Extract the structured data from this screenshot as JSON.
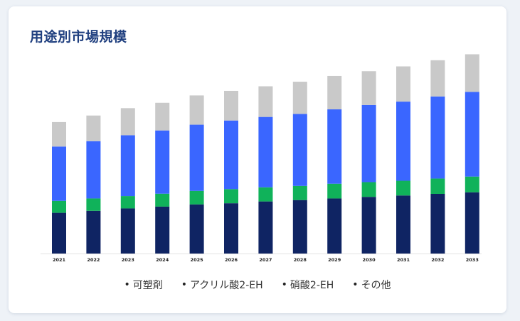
{
  "page": {
    "title": "用途別市場規模"
  },
  "chart_data": {
    "type": "bar",
    "stacked": true,
    "title": "用途別市場規模",
    "xlabel": "",
    "ylabel": "",
    "categories": [
      "2021",
      "2022",
      "2023",
      "2024",
      "2025",
      "2026",
      "2027",
      "2028",
      "2029",
      "2030",
      "2031",
      "2032",
      "2033"
    ],
    "ylim": [
      0,
      100
    ],
    "grid": false,
    "legend_position": "bottom",
    "series": [
      {
        "name": "可塑剤",
        "color": "#0f2463",
        "values": [
          20.5,
          21.5,
          22.7,
          23.6,
          24.7,
          25.3,
          26.2,
          26.9,
          27.7,
          28.5,
          29.2,
          30.0,
          30.8
        ]
      },
      {
        "name": "アクリル酸2-EH",
        "color": "#10b25a",
        "values": [
          6.0,
          6.2,
          6.2,
          6.5,
          6.8,
          7.1,
          7.1,
          7.1,
          7.4,
          7.4,
          7.4,
          7.7,
          7.9
        ]
      },
      {
        "name": "硝酸2-EH",
        "color": "#3a66ff",
        "values": [
          27.3,
          28.8,
          30.6,
          31.8,
          33.3,
          34.5,
          35.4,
          36.2,
          37.4,
          38.8,
          39.8,
          41.3,
          42.6
        ]
      },
      {
        "name": "その他",
        "color": "#c9c9c9",
        "values": [
          12.3,
          12.9,
          13.6,
          13.9,
          14.7,
          14.9,
          15.4,
          16.2,
          16.8,
          17.0,
          17.7,
          18.2,
          18.9
        ]
      }
    ]
  }
}
